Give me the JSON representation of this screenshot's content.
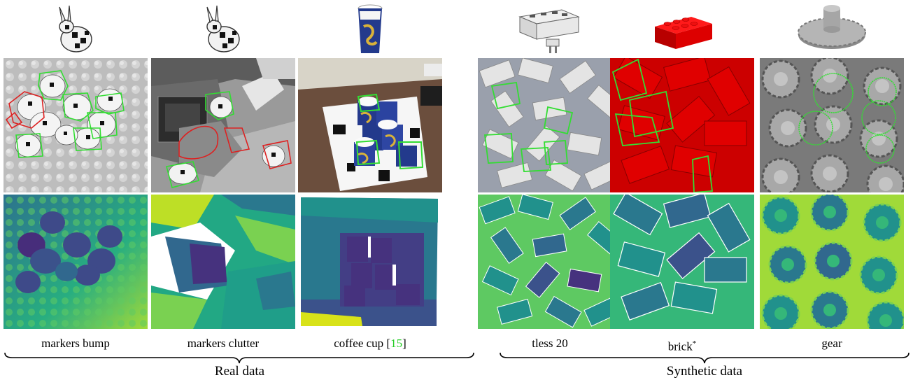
{
  "columns": [
    {
      "id": "markers-bump",
      "caption": "markers bump",
      "caption_ref": "",
      "caption_sup": "",
      "object_icon": "bunny-with-markers-icon"
    },
    {
      "id": "markers-clutter",
      "caption": "markers clutter",
      "caption_ref": "",
      "caption_sup": "",
      "object_icon": "bunny-with-markers-icon"
    },
    {
      "id": "coffee-cup",
      "caption": "coffee cup [",
      "caption_ref": "15",
      "caption_close": "]",
      "caption_sup": "",
      "object_icon": "coffee-cup-icon"
    },
    {
      "id": "tless-20",
      "caption": "tless 20",
      "caption_ref": "",
      "caption_sup": "",
      "object_icon": "power-socket-icon"
    },
    {
      "id": "brick",
      "caption": "brick",
      "caption_ref": "",
      "caption_sup": "*",
      "object_icon": "lego-brick-icon"
    },
    {
      "id": "gear",
      "caption": "gear",
      "caption_ref": "",
      "caption_sup": "",
      "object_icon": "gear-icon"
    }
  ],
  "groups": {
    "real": "Real data",
    "synthetic": "Synthetic data"
  },
  "colors": {
    "detection_good": "#33dd33",
    "detection_bad": "#dd2222",
    "citation": "#22cc22",
    "brick_red": "#cc0000",
    "depth_dark": "#3d1a6e",
    "depth_mid": "#2a8a8c",
    "depth_light": "#c8e020"
  }
}
